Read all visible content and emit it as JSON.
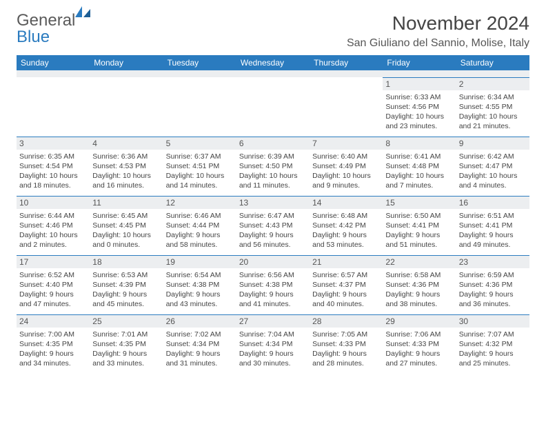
{
  "brand": {
    "word1": "General",
    "word2": "Blue"
  },
  "title": "November 2024",
  "location": "San Giuliano del Sannio, Molise, Italy",
  "colors": {
    "header_bg": "#2a7bbf",
    "header_text": "#ffffff",
    "daynum_bg": "#eceef0",
    "cell_border": "#2a7bbf",
    "body_text": "#444444",
    "title_text": "#444444",
    "page_bg": "#ffffff"
  },
  "typography": {
    "title_fontsize": 28,
    "location_fontsize": 16,
    "dayhead_fontsize": 12,
    "daynum_fontsize": 12,
    "info_fontsize": 10.5
  },
  "dayNames": [
    "Sunday",
    "Monday",
    "Tuesday",
    "Wednesday",
    "Thursday",
    "Friday",
    "Saturday"
  ],
  "weeks": [
    [
      null,
      null,
      null,
      null,
      null,
      {
        "d": "1",
        "sr": "Sunrise: 6:33 AM",
        "ss": "Sunset: 4:56 PM",
        "dl1": "Daylight: 10 hours",
        "dl2": "and 23 minutes."
      },
      {
        "d": "2",
        "sr": "Sunrise: 6:34 AM",
        "ss": "Sunset: 4:55 PM",
        "dl1": "Daylight: 10 hours",
        "dl2": "and 21 minutes."
      }
    ],
    [
      {
        "d": "3",
        "sr": "Sunrise: 6:35 AM",
        "ss": "Sunset: 4:54 PM",
        "dl1": "Daylight: 10 hours",
        "dl2": "and 18 minutes."
      },
      {
        "d": "4",
        "sr": "Sunrise: 6:36 AM",
        "ss": "Sunset: 4:53 PM",
        "dl1": "Daylight: 10 hours",
        "dl2": "and 16 minutes."
      },
      {
        "d": "5",
        "sr": "Sunrise: 6:37 AM",
        "ss": "Sunset: 4:51 PM",
        "dl1": "Daylight: 10 hours",
        "dl2": "and 14 minutes."
      },
      {
        "d": "6",
        "sr": "Sunrise: 6:39 AM",
        "ss": "Sunset: 4:50 PM",
        "dl1": "Daylight: 10 hours",
        "dl2": "and 11 minutes."
      },
      {
        "d": "7",
        "sr": "Sunrise: 6:40 AM",
        "ss": "Sunset: 4:49 PM",
        "dl1": "Daylight: 10 hours",
        "dl2": "and 9 minutes."
      },
      {
        "d": "8",
        "sr": "Sunrise: 6:41 AM",
        "ss": "Sunset: 4:48 PM",
        "dl1": "Daylight: 10 hours",
        "dl2": "and 7 minutes."
      },
      {
        "d": "9",
        "sr": "Sunrise: 6:42 AM",
        "ss": "Sunset: 4:47 PM",
        "dl1": "Daylight: 10 hours",
        "dl2": "and 4 minutes."
      }
    ],
    [
      {
        "d": "10",
        "sr": "Sunrise: 6:44 AM",
        "ss": "Sunset: 4:46 PM",
        "dl1": "Daylight: 10 hours",
        "dl2": "and 2 minutes."
      },
      {
        "d": "11",
        "sr": "Sunrise: 6:45 AM",
        "ss": "Sunset: 4:45 PM",
        "dl1": "Daylight: 10 hours",
        "dl2": "and 0 minutes."
      },
      {
        "d": "12",
        "sr": "Sunrise: 6:46 AM",
        "ss": "Sunset: 4:44 PM",
        "dl1": "Daylight: 9 hours",
        "dl2": "and 58 minutes."
      },
      {
        "d": "13",
        "sr": "Sunrise: 6:47 AM",
        "ss": "Sunset: 4:43 PM",
        "dl1": "Daylight: 9 hours",
        "dl2": "and 56 minutes."
      },
      {
        "d": "14",
        "sr": "Sunrise: 6:48 AM",
        "ss": "Sunset: 4:42 PM",
        "dl1": "Daylight: 9 hours",
        "dl2": "and 53 minutes."
      },
      {
        "d": "15",
        "sr": "Sunrise: 6:50 AM",
        "ss": "Sunset: 4:41 PM",
        "dl1": "Daylight: 9 hours",
        "dl2": "and 51 minutes."
      },
      {
        "d": "16",
        "sr": "Sunrise: 6:51 AM",
        "ss": "Sunset: 4:41 PM",
        "dl1": "Daylight: 9 hours",
        "dl2": "and 49 minutes."
      }
    ],
    [
      {
        "d": "17",
        "sr": "Sunrise: 6:52 AM",
        "ss": "Sunset: 4:40 PM",
        "dl1": "Daylight: 9 hours",
        "dl2": "and 47 minutes."
      },
      {
        "d": "18",
        "sr": "Sunrise: 6:53 AM",
        "ss": "Sunset: 4:39 PM",
        "dl1": "Daylight: 9 hours",
        "dl2": "and 45 minutes."
      },
      {
        "d": "19",
        "sr": "Sunrise: 6:54 AM",
        "ss": "Sunset: 4:38 PM",
        "dl1": "Daylight: 9 hours",
        "dl2": "and 43 minutes."
      },
      {
        "d": "20",
        "sr": "Sunrise: 6:56 AM",
        "ss": "Sunset: 4:38 PM",
        "dl1": "Daylight: 9 hours",
        "dl2": "and 41 minutes."
      },
      {
        "d": "21",
        "sr": "Sunrise: 6:57 AM",
        "ss": "Sunset: 4:37 PM",
        "dl1": "Daylight: 9 hours",
        "dl2": "and 40 minutes."
      },
      {
        "d": "22",
        "sr": "Sunrise: 6:58 AM",
        "ss": "Sunset: 4:36 PM",
        "dl1": "Daylight: 9 hours",
        "dl2": "and 38 minutes."
      },
      {
        "d": "23",
        "sr": "Sunrise: 6:59 AM",
        "ss": "Sunset: 4:36 PM",
        "dl1": "Daylight: 9 hours",
        "dl2": "and 36 minutes."
      }
    ],
    [
      {
        "d": "24",
        "sr": "Sunrise: 7:00 AM",
        "ss": "Sunset: 4:35 PM",
        "dl1": "Daylight: 9 hours",
        "dl2": "and 34 minutes."
      },
      {
        "d": "25",
        "sr": "Sunrise: 7:01 AM",
        "ss": "Sunset: 4:35 PM",
        "dl1": "Daylight: 9 hours",
        "dl2": "and 33 minutes."
      },
      {
        "d": "26",
        "sr": "Sunrise: 7:02 AM",
        "ss": "Sunset: 4:34 PM",
        "dl1": "Daylight: 9 hours",
        "dl2": "and 31 minutes."
      },
      {
        "d": "27",
        "sr": "Sunrise: 7:04 AM",
        "ss": "Sunset: 4:34 PM",
        "dl1": "Daylight: 9 hours",
        "dl2": "and 30 minutes."
      },
      {
        "d": "28",
        "sr": "Sunrise: 7:05 AM",
        "ss": "Sunset: 4:33 PM",
        "dl1": "Daylight: 9 hours",
        "dl2": "and 28 minutes."
      },
      {
        "d": "29",
        "sr": "Sunrise: 7:06 AM",
        "ss": "Sunset: 4:33 PM",
        "dl1": "Daylight: 9 hours",
        "dl2": "and 27 minutes."
      },
      {
        "d": "30",
        "sr": "Sunrise: 7:07 AM",
        "ss": "Sunset: 4:32 PM",
        "dl1": "Daylight: 9 hours",
        "dl2": "and 25 minutes."
      }
    ]
  ]
}
